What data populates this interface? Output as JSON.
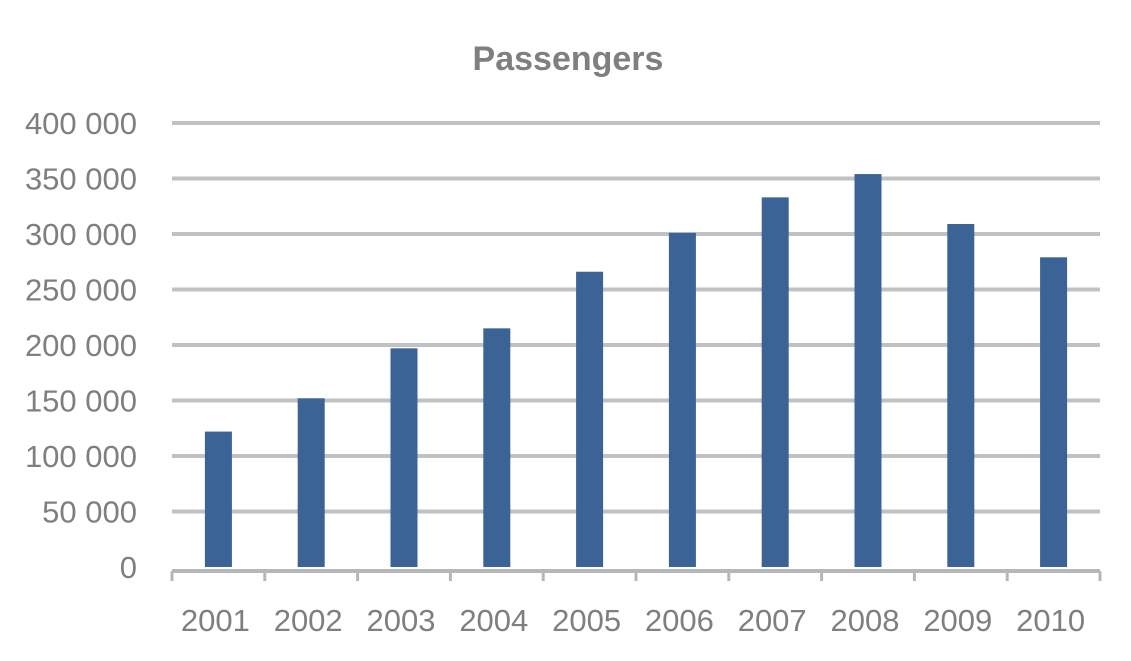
{
  "chart_data": {
    "type": "bar",
    "title": "Passengers",
    "xlabel": "",
    "ylabel": "",
    "categories": [
      "2001",
      "2002",
      "2003",
      "2004",
      "2005",
      "2006",
      "2007",
      "2008",
      "2009",
      "2010"
    ],
    "values": [
      122000,
      152000,
      197000,
      215000,
      266000,
      301000,
      333000,
      354000,
      309000,
      279000
    ],
    "ylim": [
      0,
      400000
    ],
    "yticks": [
      0,
      50000,
      100000,
      150000,
      200000,
      250000,
      300000,
      350000,
      400000
    ],
    "ytick_labels": [
      "0",
      "50 000",
      "100 000",
      "150 000",
      "200 000",
      "250 000",
      "300 000",
      "350 000",
      "400 000"
    ],
    "grid": true,
    "legend": "none",
    "colors": {
      "bar": "#3b6395",
      "grid": "#c0c1c5",
      "axis": "#b6b7ba",
      "text": "#7f7f7f"
    }
  }
}
